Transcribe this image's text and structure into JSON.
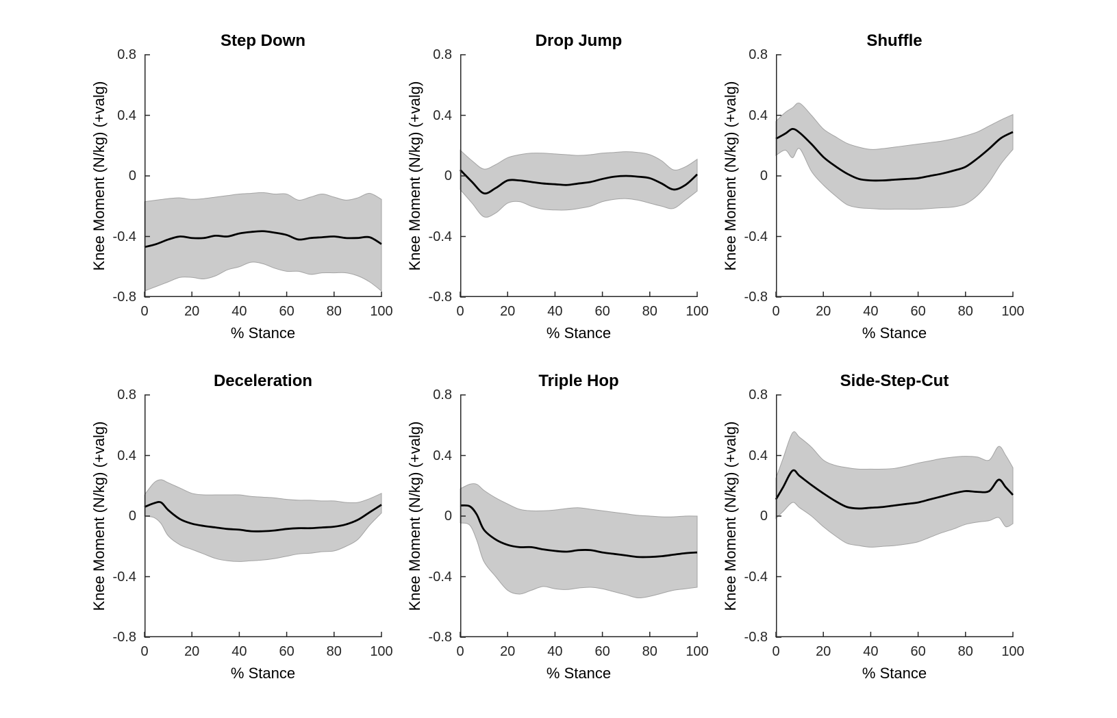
{
  "style": {
    "background": "#ffffff",
    "mean_line_color": "#000000",
    "band_fill_color": "#cbcbcb",
    "band_edge_color": "#a3a3a3",
    "axis_color": "#262626",
    "tick_label_color": "#262626",
    "text_color": "#000000"
  },
  "chart_data": [
    {
      "type": "line",
      "subtype": "mean-with-shaded-error-band",
      "title": "Step Down",
      "xlabel": "% Stance",
      "ylabel": "Knee Moment (N/kg) (+valg)",
      "xlim": [
        0,
        100
      ],
      "ylim": [
        -0.8,
        0.8
      ],
      "xticks": [
        0,
        20,
        40,
        60,
        80,
        100
      ],
      "yticks": [
        "0.8",
        "0.4",
        "0",
        "-0.4",
        "-0.8"
      ],
      "grid": false,
      "legend": false,
      "x": [
        0,
        5,
        10,
        15,
        20,
        25,
        30,
        35,
        40,
        45,
        50,
        55,
        60,
        65,
        70,
        75,
        80,
        85,
        90,
        95,
        100
      ],
      "mean": [
        -0.47,
        -0.45,
        -0.42,
        -0.4,
        -0.41,
        -0.41,
        -0.395,
        -0.4,
        -0.38,
        -0.37,
        -0.365,
        -0.375,
        -0.39,
        -0.42,
        -0.41,
        -0.405,
        -0.4,
        -0.41,
        -0.41,
        -0.405,
        -0.45
      ],
      "upper": [
        -0.17,
        -0.16,
        -0.15,
        -0.145,
        -0.155,
        -0.15,
        -0.14,
        -0.13,
        -0.12,
        -0.115,
        -0.11,
        -0.12,
        -0.12,
        -0.16,
        -0.14,
        -0.12,
        -0.14,
        -0.16,
        -0.145,
        -0.115,
        -0.155
      ],
      "lower": [
        -0.76,
        -0.73,
        -0.7,
        -0.67,
        -0.67,
        -0.68,
        -0.66,
        -0.62,
        -0.6,
        -0.57,
        -0.58,
        -0.61,
        -0.63,
        -0.63,
        -0.65,
        -0.64,
        -0.64,
        -0.64,
        -0.66,
        -0.7,
        -0.76
      ]
    },
    {
      "type": "line",
      "subtype": "mean-with-shaded-error-band",
      "title": "Drop Jump",
      "xlabel": "% Stance",
      "ylabel": "Knee Moment (N/kg) (+valg)",
      "xlim": [
        0,
        100
      ],
      "ylim": [
        -0.8,
        0.8
      ],
      "xticks": [
        0,
        20,
        40,
        60,
        80,
        100
      ],
      "yticks": [
        "0.8",
        "0.4",
        "0",
        "-0.4",
        "-0.8"
      ],
      "grid": false,
      "legend": false,
      "x": [
        0,
        5,
        10,
        15,
        20,
        25,
        30,
        35,
        40,
        45,
        50,
        55,
        60,
        65,
        70,
        75,
        80,
        85,
        90,
        95,
        100
      ],
      "mean": [
        0.04,
        -0.04,
        -0.115,
        -0.08,
        -0.03,
        -0.03,
        -0.04,
        -0.05,
        -0.055,
        -0.06,
        -0.05,
        -0.04,
        -0.02,
        -0.005,
        0.0,
        -0.005,
        -0.015,
        -0.05,
        -0.09,
        -0.06,
        0.01
      ],
      "upper": [
        0.17,
        0.1,
        0.045,
        0.075,
        0.12,
        0.14,
        0.15,
        0.15,
        0.145,
        0.14,
        0.135,
        0.14,
        0.15,
        0.155,
        0.16,
        0.155,
        0.14,
        0.1,
        0.04,
        0.06,
        0.11
      ],
      "lower": [
        -0.09,
        -0.18,
        -0.27,
        -0.245,
        -0.18,
        -0.17,
        -0.2,
        -0.22,
        -0.225,
        -0.225,
        -0.215,
        -0.2,
        -0.17,
        -0.155,
        -0.15,
        -0.16,
        -0.18,
        -0.2,
        -0.215,
        -0.16,
        -0.1
      ]
    },
    {
      "type": "line",
      "subtype": "mean-with-shaded-error-band",
      "title": "Shuffle",
      "xlabel": "% Stance",
      "ylabel": "Knee Moment (N/kg) (+valg)",
      "xlim": [
        0,
        100
      ],
      "ylim": [
        -0.8,
        0.8
      ],
      "xticks": [
        0,
        20,
        40,
        60,
        80,
        100
      ],
      "yticks": [
        "0.8",
        "0.4",
        "0",
        "-0.4",
        "-0.8"
      ],
      "grid": false,
      "legend": false,
      "x": [
        0,
        4,
        7,
        10,
        15,
        20,
        25,
        30,
        35,
        40,
        45,
        50,
        55,
        60,
        65,
        70,
        75,
        80,
        85,
        90,
        95,
        100
      ],
      "mean": [
        0.245,
        0.28,
        0.31,
        0.285,
        0.21,
        0.125,
        0.065,
        0.015,
        -0.02,
        -0.03,
        -0.03,
        -0.025,
        -0.02,
        -0.015,
        0.0,
        0.015,
        0.035,
        0.06,
        0.115,
        0.18,
        0.25,
        0.29
      ],
      "upper": [
        0.36,
        0.42,
        0.45,
        0.48,
        0.4,
        0.31,
        0.26,
        0.215,
        0.19,
        0.175,
        0.18,
        0.19,
        0.2,
        0.21,
        0.22,
        0.23,
        0.245,
        0.265,
        0.29,
        0.33,
        0.37,
        0.405
      ],
      "lower": [
        0.135,
        0.17,
        0.12,
        0.18,
        0.03,
        -0.06,
        -0.13,
        -0.19,
        -0.21,
        -0.215,
        -0.22,
        -0.22,
        -0.22,
        -0.22,
        -0.215,
        -0.21,
        -0.205,
        -0.185,
        -0.13,
        -0.04,
        0.08,
        0.175
      ]
    },
    {
      "type": "line",
      "subtype": "mean-with-shaded-error-band",
      "title": "Deceleration",
      "xlabel": "% Stance",
      "ylabel": "Knee Moment (N/kg) (+valg)",
      "xlim": [
        0,
        100
      ],
      "ylim": [
        -0.8,
        0.8
      ],
      "xticks": [
        0,
        20,
        40,
        60,
        80,
        100
      ],
      "yticks": [
        "0.8",
        "0.4",
        "0",
        "-0.4",
        "-0.8"
      ],
      "grid": false,
      "legend": false,
      "x": [
        0,
        4,
        7,
        10,
        15,
        20,
        25,
        30,
        35,
        40,
        45,
        50,
        55,
        60,
        65,
        70,
        75,
        80,
        85,
        90,
        95,
        100
      ],
      "mean": [
        0.06,
        0.085,
        0.09,
        0.04,
        -0.02,
        -0.05,
        -0.065,
        -0.075,
        -0.085,
        -0.09,
        -0.1,
        -0.1,
        -0.095,
        -0.085,
        -0.08,
        -0.08,
        -0.075,
        -0.07,
        -0.055,
        -0.025,
        0.025,
        0.075
      ],
      "upper": [
        0.14,
        0.22,
        0.24,
        0.22,
        0.185,
        0.15,
        0.14,
        0.14,
        0.14,
        0.14,
        0.13,
        0.125,
        0.12,
        0.11,
        0.105,
        0.105,
        0.1,
        0.1,
        0.09,
        0.09,
        0.115,
        0.15
      ],
      "lower": [
        0.0,
        -0.01,
        -0.05,
        -0.13,
        -0.19,
        -0.22,
        -0.25,
        -0.28,
        -0.295,
        -0.3,
        -0.295,
        -0.29,
        -0.28,
        -0.265,
        -0.25,
        -0.245,
        -0.235,
        -0.23,
        -0.2,
        -0.155,
        -0.06,
        0.02
      ]
    },
    {
      "type": "line",
      "subtype": "mean-with-shaded-error-band",
      "title": "Triple Hop",
      "xlabel": "% Stance",
      "ylabel": "Knee Moment (N/kg) (+valg)",
      "xlim": [
        0,
        100
      ],
      "ylim": [
        -0.8,
        0.8
      ],
      "xticks": [
        0,
        20,
        40,
        60,
        80,
        100
      ],
      "yticks": [
        "0.8",
        "0.4",
        "0",
        "-0.4",
        "-0.8"
      ],
      "grid": false,
      "legend": false,
      "x": [
        0,
        4,
        7,
        10,
        15,
        20,
        25,
        30,
        35,
        40,
        45,
        50,
        55,
        60,
        65,
        70,
        75,
        80,
        85,
        90,
        95,
        100
      ],
      "mean": [
        0.07,
        0.065,
        0.01,
        -0.09,
        -0.155,
        -0.19,
        -0.205,
        -0.205,
        -0.22,
        -0.23,
        -0.235,
        -0.225,
        -0.225,
        -0.24,
        -0.25,
        -0.26,
        -0.27,
        -0.27,
        -0.265,
        -0.255,
        -0.245,
        -0.24
      ],
      "upper": [
        0.18,
        0.21,
        0.21,
        0.17,
        0.12,
        0.08,
        0.045,
        0.035,
        0.035,
        0.04,
        0.05,
        0.055,
        0.045,
        0.035,
        0.025,
        0.015,
        0.005,
        0.0,
        -0.005,
        -0.005,
        0.0,
        0.0
      ],
      "lower": [
        -0.045,
        -0.06,
        -0.16,
        -0.3,
        -0.4,
        -0.49,
        -0.515,
        -0.49,
        -0.465,
        -0.48,
        -0.485,
        -0.475,
        -0.47,
        -0.48,
        -0.5,
        -0.52,
        -0.54,
        -0.53,
        -0.51,
        -0.49,
        -0.48,
        -0.47
      ]
    },
    {
      "type": "line",
      "subtype": "mean-with-shaded-error-band",
      "title": "Side-Step-Cut",
      "xlabel": "% Stance",
      "ylabel": "Knee Moment (N/kg) (+valg)",
      "xlim": [
        0,
        100
      ],
      "ylim": [
        -0.8,
        0.8
      ],
      "xticks": [
        0,
        20,
        40,
        60,
        80,
        100
      ],
      "yticks": [
        "0.8",
        "0.4",
        "0",
        "-0.4",
        "-0.8"
      ],
      "grid": false,
      "legend": false,
      "x": [
        0,
        3,
        7,
        10,
        15,
        20,
        25,
        30,
        35,
        40,
        45,
        50,
        55,
        60,
        65,
        70,
        75,
        80,
        85,
        90,
        94,
        97,
        100
      ],
      "mean": [
        0.11,
        0.19,
        0.3,
        0.265,
        0.205,
        0.15,
        0.1,
        0.06,
        0.05,
        0.055,
        0.06,
        0.07,
        0.08,
        0.09,
        0.11,
        0.13,
        0.15,
        0.165,
        0.16,
        0.165,
        0.24,
        0.19,
        0.14
      ],
      "upper": [
        0.25,
        0.38,
        0.55,
        0.52,
        0.455,
        0.37,
        0.335,
        0.32,
        0.31,
        0.31,
        0.31,
        0.315,
        0.33,
        0.35,
        0.365,
        0.38,
        0.39,
        0.395,
        0.39,
        0.37,
        0.46,
        0.4,
        0.32
      ],
      "lower": [
        -0.015,
        0.03,
        0.09,
        0.055,
        0.0,
        -0.07,
        -0.13,
        -0.18,
        -0.195,
        -0.205,
        -0.2,
        -0.195,
        -0.185,
        -0.17,
        -0.14,
        -0.11,
        -0.085,
        -0.055,
        -0.04,
        -0.03,
        -0.01,
        -0.07,
        -0.05
      ]
    }
  ]
}
